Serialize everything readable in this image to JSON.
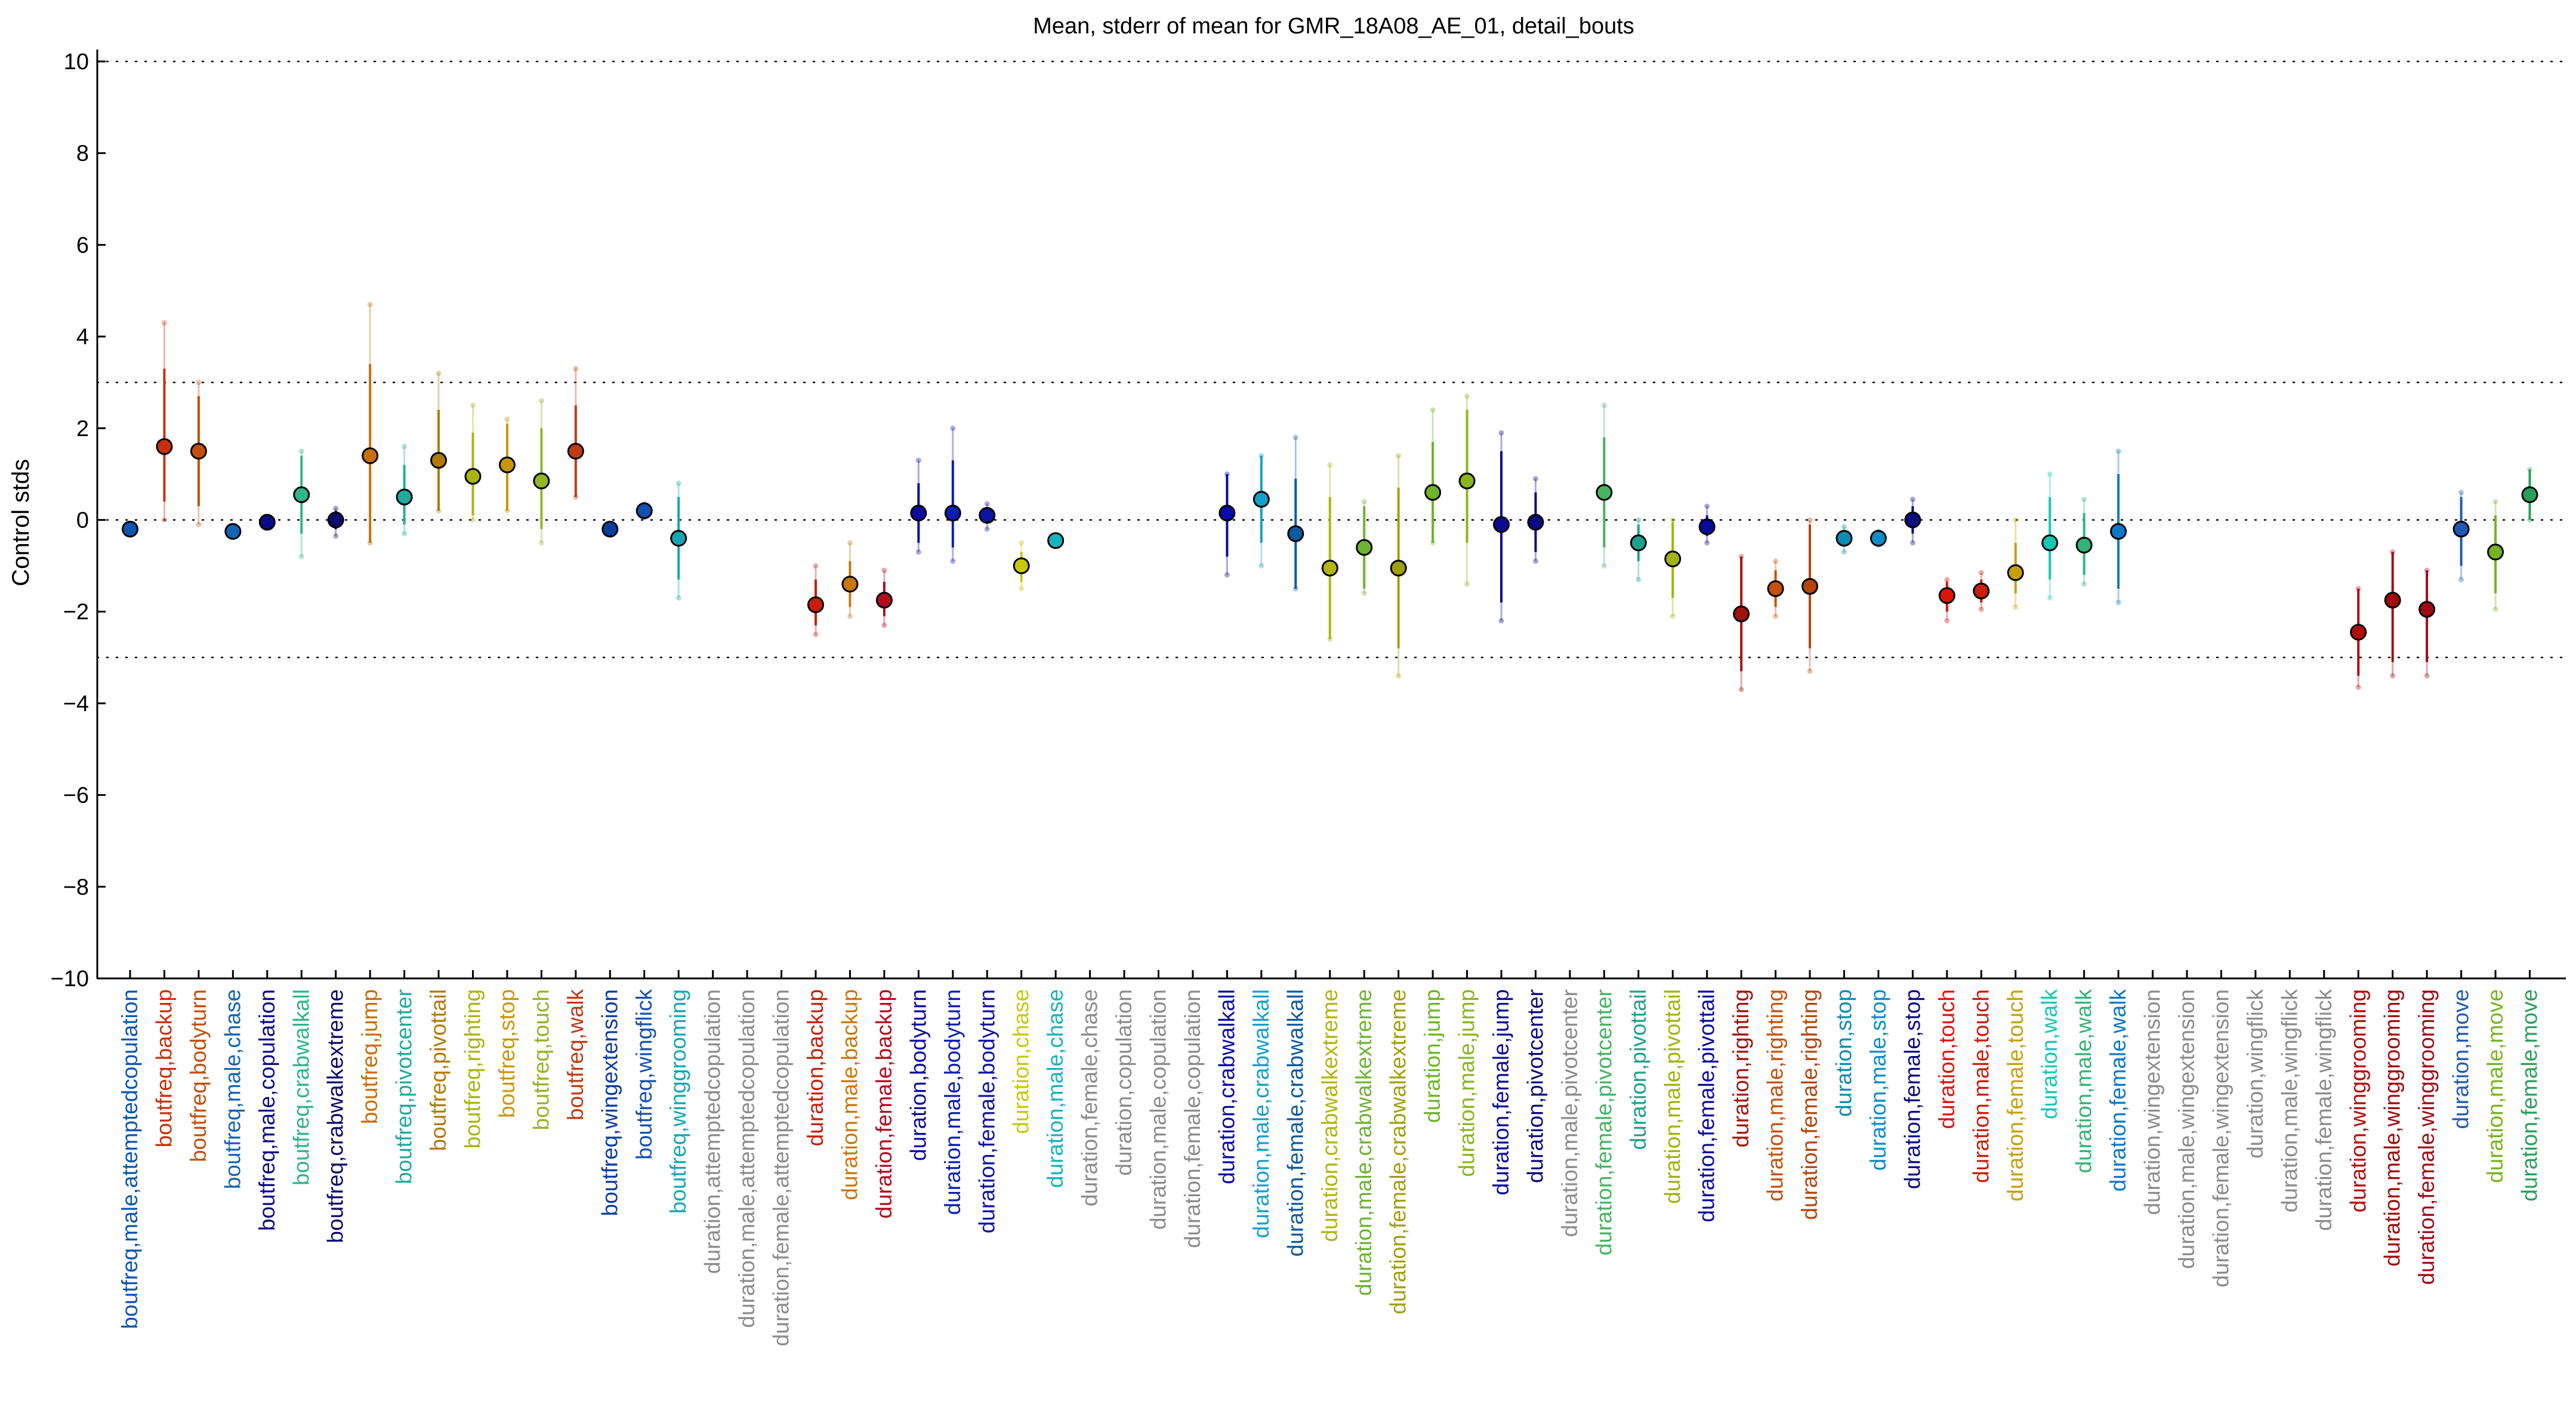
{
  "chart_data": {
    "type": "scatter",
    "title": "Mean, stderr of mean for GMR_18A08_AE_01, detail_bouts",
    "ylabel": "Control stds",
    "xlabel": "",
    "ylim": [
      -10,
      10
    ],
    "yticks": [
      -10,
      -8,
      -6,
      -4,
      -2,
      0,
      2,
      4,
      6,
      8,
      10
    ],
    "reference_lines": [
      -10,
      -3,
      0,
      3,
      10
    ],
    "grid": false,
    "legend": "none",
    "categories": [
      {
        "label": "boutfreq,male,attemptedcopulation",
        "mean": -0.2,
        "se_lo": -0.3,
        "se_hi": -0.1,
        "range_lo": -0.3,
        "range_hi": -0.1,
        "color": "#0a56b0"
      },
      {
        "label": "boutfreq,backup",
        "mean": 1.6,
        "se_lo": 0.4,
        "se_hi": 3.3,
        "range_lo": 0.0,
        "range_hi": 4.3,
        "color": "#c9300a"
      },
      {
        "label": "boutfreq,bodyturn",
        "mean": 1.5,
        "se_lo": 0.3,
        "se_hi": 2.7,
        "range_lo": -0.1,
        "range_hi": 3.0,
        "color": "#c44e08"
      },
      {
        "label": "boutfreq,male,chase",
        "mean": -0.25,
        "se_lo": -0.35,
        "se_hi": -0.15,
        "range_lo": -0.35,
        "range_hi": -0.15,
        "color": "#1464b4"
      },
      {
        "label": "boutfreq,male,copulation",
        "mean": -0.05,
        "se_lo": -0.15,
        "se_hi": 0.05,
        "range_lo": -0.15,
        "range_hi": 0.05,
        "color": "#0a0a86"
      },
      {
        "label": "boutfreq,crabwalkall",
        "mean": 0.55,
        "se_lo": -0.3,
        "se_hi": 1.4,
        "range_lo": -0.8,
        "range_hi": 1.5,
        "color": "#2eb58a"
      },
      {
        "label": "boutfreq,crabwalkextreme",
        "mean": 0.0,
        "se_lo": -0.2,
        "se_hi": 0.2,
        "range_lo": -0.35,
        "range_hi": 0.25,
        "color": "#0a0a6e"
      },
      {
        "label": "boutfreq,jump",
        "mean": 1.4,
        "se_lo": -0.5,
        "se_hi": 3.4,
        "range_lo": -0.5,
        "range_hi": 4.7,
        "color": "#c86e0a"
      },
      {
        "label": "boutfreq,pivotcenter",
        "mean": 0.5,
        "se_lo": -0.1,
        "se_hi": 1.2,
        "range_lo": -0.3,
        "range_hi": 1.6,
        "color": "#20aaa0"
      },
      {
        "label": "boutfreq,pivottail",
        "mean": 1.3,
        "se_lo": 0.2,
        "se_hi": 2.4,
        "range_lo": 0.2,
        "range_hi": 3.2,
        "color": "#b07a08"
      },
      {
        "label": "boutfreq,righting",
        "mean": 0.95,
        "se_lo": 0.1,
        "se_hi": 1.9,
        "range_lo": 0.0,
        "range_hi": 2.5,
        "color": "#aab412"
      },
      {
        "label": "boutfreq,stop",
        "mean": 1.2,
        "se_lo": 0.2,
        "se_hi": 2.1,
        "range_lo": 0.2,
        "range_hi": 2.2,
        "color": "#c8960a"
      },
      {
        "label": "boutfreq,touch",
        "mean": 0.85,
        "se_lo": -0.2,
        "se_hi": 2.0,
        "range_lo": -0.5,
        "range_hi": 2.6,
        "color": "#94b424"
      },
      {
        "label": "boutfreq,walk",
        "mean": 1.5,
        "se_lo": 0.5,
        "se_hi": 2.5,
        "range_lo": 0.5,
        "range_hi": 3.3,
        "color": "#c03a14"
      },
      {
        "label": "boutfreq,wingextension",
        "mean": -0.2,
        "se_lo": -0.3,
        "se_hi": -0.1,
        "range_lo": -0.3,
        "range_hi": -0.1,
        "color": "#0a3ca0"
      },
      {
        "label": "boutfreq,wingflick",
        "mean": 0.2,
        "se_lo": 0.1,
        "se_hi": 0.3,
        "range_lo": 0.05,
        "range_hi": 0.35,
        "color": "#1450b4"
      },
      {
        "label": "boutfreq,winggrooming",
        "mean": -0.4,
        "se_lo": -1.3,
        "se_hi": 0.5,
        "range_lo": -1.7,
        "range_hi": 0.8,
        "color": "#14a6b4"
      },
      {
        "label": "duration,attemptedcopulation",
        "mean": null,
        "color": "#8c8c8c"
      },
      {
        "label": "duration,male,attemptedcopulation",
        "mean": null,
        "color": "#8c8c8c"
      },
      {
        "label": "duration,female,attemptedcopulation",
        "mean": null,
        "color": "#8c8c8c"
      },
      {
        "label": "duration,backup",
        "mean": -1.85,
        "se_lo": -2.3,
        "se_hi": -1.3,
        "range_lo": -2.5,
        "range_hi": -1.0,
        "color": "#c81e0a"
      },
      {
        "label": "duration,male,backup",
        "mean": -1.4,
        "se_lo": -1.9,
        "se_hi": -0.9,
        "range_lo": -2.1,
        "range_hi": -0.5,
        "color": "#c8780a"
      },
      {
        "label": "duration,female,backup",
        "mean": -1.75,
        "se_lo": -2.1,
        "se_hi": -1.35,
        "range_lo": -2.3,
        "range_hi": -1.1,
        "color": "#b40a1e"
      },
      {
        "label": "duration,bodyturn",
        "mean": 0.15,
        "se_lo": -0.5,
        "se_hi": 0.8,
        "range_lo": -0.7,
        "range_hi": 1.3,
        "color": "#0a0aa0"
      },
      {
        "label": "duration,male,bodyturn",
        "mean": 0.15,
        "se_lo": -0.6,
        "se_hi": 1.3,
        "range_lo": -0.9,
        "range_hi": 2.0,
        "color": "#0a1eb4"
      },
      {
        "label": "duration,female,bodyturn",
        "mean": 0.1,
        "se_lo": -0.05,
        "se_hi": 0.25,
        "range_lo": -0.2,
        "range_hi": 0.35,
        "color": "#0a14a0"
      },
      {
        "label": "duration,chase",
        "mean": -1.0,
        "se_lo": -1.35,
        "se_hi": -0.7,
        "range_lo": -1.5,
        "range_hi": -0.5,
        "color": "#c8c80a"
      },
      {
        "label": "duration,male,chase",
        "mean": -0.45,
        "se_lo": -0.55,
        "se_hi": -0.35,
        "range_lo": -0.55,
        "range_hi": -0.35,
        "color": "#14b4be"
      },
      {
        "label": "duration,female,chase",
        "mean": null,
        "color": "#8c8c8c"
      },
      {
        "label": "duration,copulation",
        "mean": null,
        "color": "#8c8c8c"
      },
      {
        "label": "duration,male,copulation",
        "mean": null,
        "color": "#8c8c8c"
      },
      {
        "label": "duration,female,copulation",
        "mean": null,
        "color": "#8c8c8c"
      },
      {
        "label": "duration,crabwalkall",
        "mean": 0.15,
        "se_lo": -0.8,
        "se_hi": 1.0,
        "range_lo": -1.2,
        "range_hi": 1.0,
        "color": "#0a0aa8"
      },
      {
        "label": "duration,male,crabwalkall",
        "mean": 0.45,
        "se_lo": -0.5,
        "se_hi": 1.4,
        "range_lo": -1.0,
        "range_hi": 1.4,
        "color": "#14a0c8"
      },
      {
        "label": "duration,female,crabwalkall",
        "mean": -0.3,
        "se_lo": -1.5,
        "se_hi": 0.9,
        "range_lo": -1.5,
        "range_hi": 1.8,
        "color": "#0a5aa0"
      },
      {
        "label": "duration,crabwalkextreme",
        "mean": -1.05,
        "se_lo": -2.6,
        "se_hi": 0.5,
        "range_lo": -2.6,
        "range_hi": 1.2,
        "color": "#b4b40a"
      },
      {
        "label": "duration,male,crabwalkextreme",
        "mean": -0.6,
        "se_lo": -1.5,
        "se_hi": 0.3,
        "range_lo": -1.6,
        "range_hi": 0.4,
        "color": "#6eb432"
      },
      {
        "label": "duration,female,crabwalkextreme",
        "mean": -1.05,
        "se_lo": -2.8,
        "se_hi": 0.7,
        "range_lo": -3.4,
        "range_hi": 1.4,
        "color": "#a0a00a"
      },
      {
        "label": "duration,jump",
        "mean": 0.6,
        "se_lo": -0.5,
        "se_hi": 1.7,
        "range_lo": -0.5,
        "range_hi": 2.4,
        "color": "#6eb428"
      },
      {
        "label": "duration,male,jump",
        "mean": 0.85,
        "se_lo": -0.5,
        "se_hi": 2.4,
        "range_lo": -1.4,
        "range_hi": 2.7,
        "color": "#8cb41e"
      },
      {
        "label": "duration,female,jump",
        "mean": -0.1,
        "se_lo": -1.8,
        "se_hi": 1.5,
        "range_lo": -2.2,
        "range_hi": 1.9,
        "color": "#0a0a96"
      },
      {
        "label": "duration,pivotcenter",
        "mean": -0.05,
        "se_lo": -0.7,
        "se_hi": 0.6,
        "range_lo": -0.9,
        "range_hi": 0.9,
        "color": "#0a0a82"
      },
      {
        "label": "duration,male,pivotcenter",
        "mean": null,
        "color": "#8c8c8c"
      },
      {
        "label": "duration,female,pivotcenter",
        "mean": 0.6,
        "se_lo": -0.6,
        "se_hi": 1.8,
        "range_lo": -1.0,
        "range_hi": 2.5,
        "color": "#46b464"
      },
      {
        "label": "duration,pivottail",
        "mean": -0.5,
        "se_lo": -0.9,
        "se_hi": -0.1,
        "range_lo": -1.3,
        "range_hi": 0.0,
        "color": "#1ea08c"
      },
      {
        "label": "duration,male,pivottail",
        "mean": -0.85,
        "se_lo": -1.7,
        "se_hi": -0.05,
        "range_lo": -2.1,
        "range_hi": 0.0,
        "color": "#a0b40a"
      },
      {
        "label": "duration,female,pivottail",
        "mean": -0.15,
        "se_lo": -0.35,
        "se_hi": 0.1,
        "range_lo": -0.5,
        "range_hi": 0.3,
        "color": "#0a0aa0"
      },
      {
        "label": "duration,righting",
        "mean": -2.05,
        "se_lo": -3.3,
        "se_hi": -0.8,
        "range_lo": -3.7,
        "range_hi": -0.8,
        "color": "#a0140a"
      },
      {
        "label": "duration,male,righting",
        "mean": -1.5,
        "se_lo": -1.9,
        "se_hi": -1.1,
        "range_lo": -2.1,
        "range_hi": -0.9,
        "color": "#c8500a"
      },
      {
        "label": "duration,female,righting",
        "mean": -1.45,
        "se_lo": -2.8,
        "se_hi": -0.1,
        "range_lo": -3.3,
        "range_hi": 0.0,
        "color": "#b4460a"
      },
      {
        "label": "duration,stop",
        "mean": -0.4,
        "se_lo": -0.55,
        "se_hi": -0.25,
        "range_lo": -0.7,
        "range_hi": -0.15,
        "color": "#0a8cb4"
      },
      {
        "label": "duration,male,stop",
        "mean": -0.4,
        "se_lo": -0.5,
        "se_hi": -0.3,
        "range_lo": -0.55,
        "range_hi": -0.25,
        "color": "#0a8cc8"
      },
      {
        "label": "duration,female,stop",
        "mean": 0.0,
        "se_lo": -0.3,
        "se_hi": 0.3,
        "range_lo": -0.5,
        "range_hi": 0.45,
        "color": "#0a0a82"
      },
      {
        "label": "duration,touch",
        "mean": -1.65,
        "se_lo": -2.0,
        "se_hi": -1.35,
        "range_lo": -2.2,
        "range_hi": -1.3,
        "color": "#dc140a"
      },
      {
        "label": "duration,male,touch",
        "mean": -1.55,
        "se_lo": -1.8,
        "se_hi": -1.3,
        "range_lo": -1.95,
        "range_hi": -1.15,
        "color": "#c81e0a"
      },
      {
        "label": "duration,female,touch",
        "mean": -1.15,
        "se_lo": -1.6,
        "se_hi": -0.5,
        "range_lo": -1.9,
        "range_hi": 0.0,
        "color": "#c8a00a"
      },
      {
        "label": "duration,walk",
        "mean": -0.5,
        "se_lo": -1.3,
        "se_hi": 0.5,
        "range_lo": -1.7,
        "range_hi": 1.0,
        "color": "#14c8b4"
      },
      {
        "label": "duration,male,walk",
        "mean": -0.55,
        "se_lo": -1.2,
        "se_hi": 0.15,
        "range_lo": -1.4,
        "range_hi": 0.45,
        "color": "#32b478"
      },
      {
        "label": "duration,female,walk",
        "mean": -0.25,
        "se_lo": -1.5,
        "se_hi": 1.0,
        "range_lo": -1.8,
        "range_hi": 1.5,
        "color": "#0a78c8"
      },
      {
        "label": "duration,wingextension",
        "mean": null,
        "color": "#8c8c8c"
      },
      {
        "label": "duration,male,wingextension",
        "mean": null,
        "color": "#8c8c8c"
      },
      {
        "label": "duration,female,wingextension",
        "mean": null,
        "color": "#8c8c8c"
      },
      {
        "label": "duration,wingflick",
        "mean": null,
        "color": "#8c8c8c"
      },
      {
        "label": "duration,male,wingflick",
        "mean": null,
        "color": "#8c8c8c"
      },
      {
        "label": "duration,female,wingflick",
        "mean": null,
        "color": "#8c8c8c"
      },
      {
        "label": "duration,winggrooming",
        "mean": -2.45,
        "se_lo": -3.4,
        "se_hi": -1.5,
        "range_lo": -3.65,
        "range_hi": -1.5,
        "color": "#b40a0a"
      },
      {
        "label": "duration,male,winggrooming",
        "mean": -1.75,
        "se_lo": -3.1,
        "se_hi": -0.7,
        "range_lo": -3.4,
        "range_hi": -0.7,
        "color": "#a00a0a"
      },
      {
        "label": "duration,female,winggrooming",
        "mean": -1.95,
        "se_lo": -3.1,
        "se_hi": -1.1,
        "range_lo": -3.4,
        "range_hi": -1.1,
        "color": "#a00a14"
      },
      {
        "label": "duration,move",
        "mean": -0.2,
        "se_lo": -1.0,
        "se_hi": 0.5,
        "range_lo": -1.3,
        "range_hi": 0.6,
        "color": "#1e5ab4"
      },
      {
        "label": "duration,male,move",
        "mean": -0.7,
        "se_lo": -1.6,
        "se_hi": 0.1,
        "range_lo": -1.95,
        "range_hi": 0.4,
        "color": "#78b41e"
      },
      {
        "label": "duration,female,move",
        "mean": 0.55,
        "se_lo": 0.0,
        "se_hi": 1.1,
        "range_lo": 0.0,
        "range_hi": 1.1,
        "color": "#28a05a"
      }
    ]
  }
}
